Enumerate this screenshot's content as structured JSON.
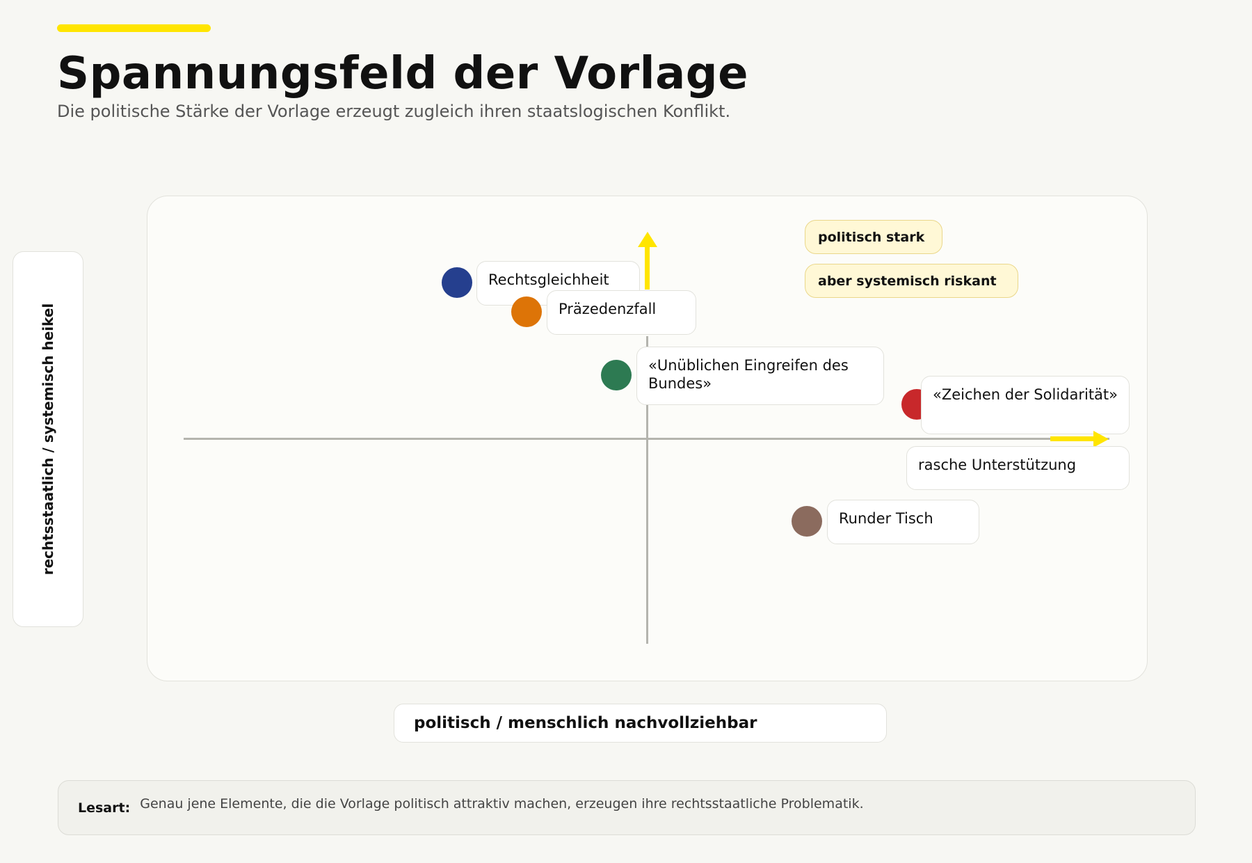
{
  "header": {
    "title": "Spannungsfeld der Vorlage",
    "subtitle": "Die politische Stärke der Vorlage erzeugt zugleich ihren staatslogischen Konflikt.",
    "accent_color": "#ffe500"
  },
  "axes": {
    "x_label": "politisch / menschlich nachvollziehbar",
    "y_label": "rechtsstaatlich / systemisch heikel"
  },
  "quadrant_tags": [
    "politisch stark",
    "aber systemisch riskant"
  ],
  "chart_data": {
    "type": "scatter",
    "xlim": [
      -1,
      1
    ],
    "ylim": [
      -1,
      1
    ],
    "grid": false,
    "points": [
      {
        "label": "Rechtsgleichheit",
        "color": "#253f8e"
      },
      {
        "label": "Präzedenzfall",
        "color": "#dd7407"
      },
      {
        "label": "«Unüblichen Eingreifen des Bundes»",
        "color": "#2d7a52"
      },
      {
        "label": "«Zeichen der Solidarität»",
        "color": "#c8282b"
      },
      {
        "label": "rasche Unterstützung",
        "color": "#ffe500"
      },
      {
        "label": "Runder Tisch",
        "color": "#8b6b5e"
      }
    ]
  },
  "note": {
    "key": "Lesart:",
    "text": "Genau jene Elemente, die die Vorlage politisch attraktiv machen, erzeugen ihre rechtsstaatliche Problematik."
  }
}
